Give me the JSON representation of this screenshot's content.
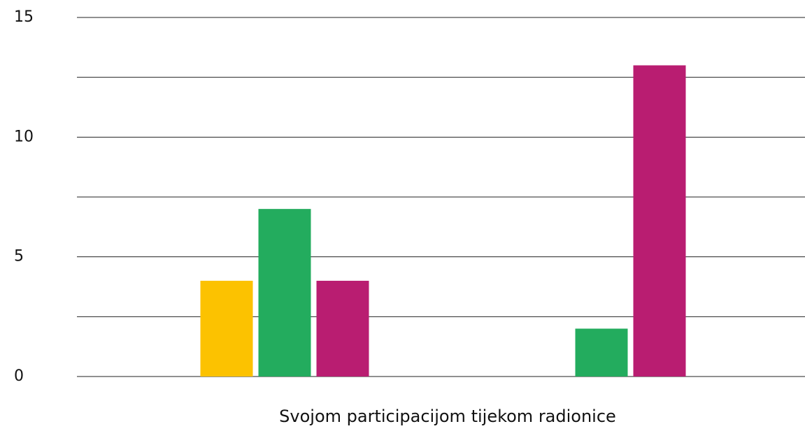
{
  "chart_data": {
    "type": "bar",
    "xlabel": "Svojom participacijom tijekom radionice",
    "categories": [
      null,
      null
    ],
    "series": [
      {
        "name": null,
        "color": "#fcc200",
        "values": [
          4,
          0
        ]
      },
      {
        "name": null,
        "color": "#23ac5e",
        "values": [
          7,
          2
        ]
      },
      {
        "name": null,
        "color": "#b91d71",
        "values": [
          4,
          13
        ]
      }
    ],
    "ylim": [
      0,
      15
    ],
    "yticks": [
      0,
      5,
      10,
      15
    ],
    "grid_lines": [
      0,
      2.5,
      5,
      7.5,
      10,
      12.5,
      15
    ],
    "grid": true
  }
}
